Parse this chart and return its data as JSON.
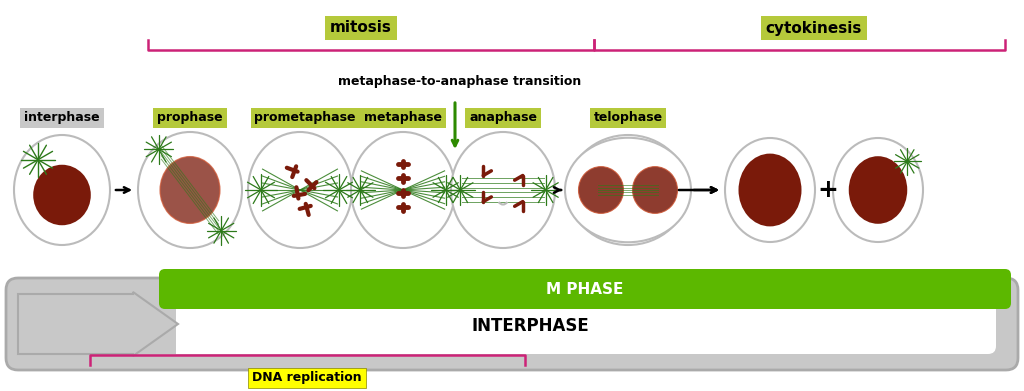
{
  "bg_color": "#ffffff",
  "figure_size": [
    10.24,
    3.91
  ],
  "dpi": 100,
  "phase_labels": [
    "interphase",
    "prophase",
    "prometaphase",
    "metaphase",
    "anaphase",
    "telophase"
  ],
  "phase_label_bg": [
    "#c8c8c8",
    "#b5c93b",
    "#b5c93b",
    "#b5c93b",
    "#b5c93b",
    "#b5c93b"
  ],
  "mitosis_label": "mitosis",
  "mitosis_bg": "#b5c93b",
  "cytokinesis_label": "cytokinesis",
  "cytokinesis_bg": "#b5c93b",
  "transition_label": "metaphase-to-anaphase transition",
  "m_phase_label": "M PHASE",
  "m_phase_color": "#5cb800",
  "interphase_label": "INTERPHASE",
  "dna_label": "DNA replication",
  "dna_bg": "#ffff00",
  "bracket_color": "#cc2277",
  "arrow_color": "#2d8a00",
  "spindle_color": "#2d7a1a",
  "nucleus_color": "#7a1a0a",
  "chromosome_color": "#7a1a0a",
  "cell_border_color": "#bbbbbb"
}
